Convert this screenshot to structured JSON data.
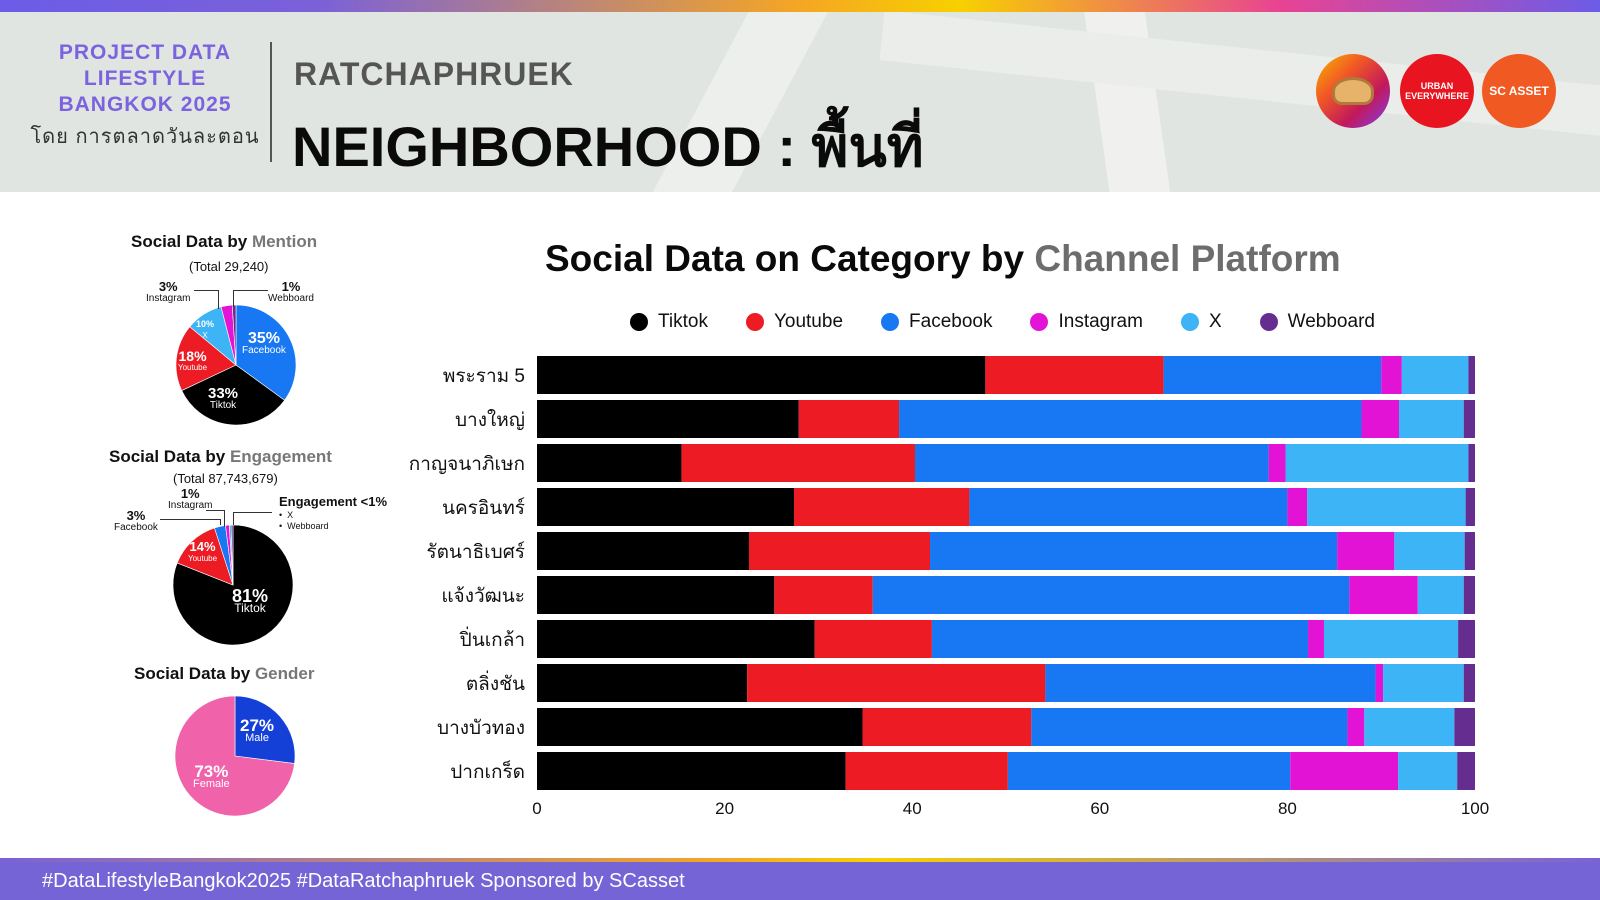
{
  "header": {
    "brand_title": "PROJECT DATA\nLIFESTYLE\nBANGKOK 2025",
    "brand_subtitle": "โดย การตลาดวันละตอน",
    "district": "RATCHAPHRUEK",
    "title": "NEIGHBORHOOD : พื้นที่",
    "logos": [
      {
        "name": "character-logo"
      },
      {
        "name": "urban-everywhere-logo",
        "text": "URBAN\nEVERYWHERE"
      },
      {
        "name": "sc-asset-logo",
        "text": "SC ASSET"
      }
    ]
  },
  "colors": {
    "Tiktok": "#000000",
    "Youtube": "#ed1c24",
    "Facebook": "#1877f2",
    "Instagram": "#e313d6",
    "X": "#3db4f6",
    "Webboard": "#662d91",
    "Male": "#1440d8",
    "Female": "#f062a9",
    "brand": "#7464d6"
  },
  "mention": {
    "title_a": "Social Data by ",
    "title_b": "Mention",
    "total": "(Total 29,240)",
    "labels": [
      {
        "pct": "35%",
        "name": "Facebook"
      },
      {
        "pct": "33%",
        "name": "Tiktok"
      },
      {
        "pct": "18%",
        "name": "Youtube"
      },
      {
        "pct": "10%",
        "name": "X"
      },
      {
        "pct": "3%",
        "name": "Instagram"
      },
      {
        "pct": "1%",
        "name": "Webboard"
      }
    ]
  },
  "engagement": {
    "title_a": "Social Data by ",
    "title_b": "Engagement",
    "total": "(Total 87,743,679)",
    "labels": [
      {
        "pct": "81%",
        "name": "Tiktok"
      },
      {
        "pct": "14%",
        "name": "Youtube"
      },
      {
        "pct": "3%",
        "name": "Facebook"
      },
      {
        "pct": "1%",
        "name": "Instagram"
      }
    ],
    "small_title": "Engagement <1%",
    "small_items": [
      "X",
      "Webboard"
    ]
  },
  "gender": {
    "title_a": "Social Data by ",
    "title_b": "Gender",
    "labels": [
      {
        "pct": "27%",
        "name": "Male"
      },
      {
        "pct": "73%",
        "name": "Female"
      }
    ]
  },
  "chart_data": [
    {
      "type": "pie",
      "title": "Social Data by Mention",
      "subtitle": "(Total 29,240)",
      "categories": [
        "Facebook",
        "Tiktok",
        "Youtube",
        "X",
        "Instagram",
        "Webboard"
      ],
      "values": [
        35,
        33,
        18,
        10,
        3,
        1
      ]
    },
    {
      "type": "pie",
      "title": "Social Data by Engagement",
      "subtitle": "(Total 87,743,679)",
      "categories": [
        "Tiktok",
        "Youtube",
        "Facebook",
        "Instagram",
        "X",
        "Webboard"
      ],
      "values": [
        81,
        14,
        3,
        1,
        0.5,
        0.5
      ]
    },
    {
      "type": "pie",
      "title": "Social Data by Gender",
      "categories": [
        "Male",
        "Female"
      ],
      "values": [
        27,
        73
      ]
    },
    {
      "type": "bar",
      "orientation": "horizontal",
      "stacked": true,
      "title": "Social Data on Category by Channel Platform",
      "categories": [
        "พระราม 5",
        "บางใหญ่",
        "กาญจนาภิเษก",
        "นครอินทร์",
        "รัตนาธิเบศร์",
        "แจ้งวัฒนะ",
        "ปิ่นเกล้า",
        "ตลิ่งชัน",
        "บางบัวทอง",
        "ปากเกร็ด"
      ],
      "series": [
        {
          "name": "Tiktok",
          "values": [
            47.8,
            27.9,
            15.4,
            27.4,
            22.6,
            25.3,
            29.6,
            22.4,
            34.7,
            32.9
          ]
        },
        {
          "name": "Youtube",
          "values": [
            19.0,
            10.7,
            24.9,
            18.7,
            19.3,
            10.5,
            12.5,
            31.8,
            18.0,
            17.3
          ]
        },
        {
          "name": "Facebook",
          "values": [
            23.2,
            49.3,
            37.7,
            33.9,
            43.4,
            50.8,
            40.1,
            35.2,
            33.7,
            30.1
          ]
        },
        {
          "name": "Instagram",
          "values": [
            2.2,
            4.0,
            1.8,
            2.1,
            6.1,
            7.3,
            1.7,
            0.8,
            1.8,
            11.5
          ]
        },
        {
          "name": "X",
          "values": [
            7.1,
            6.9,
            19.5,
            16.9,
            7.5,
            4.9,
            14.3,
            8.6,
            9.6,
            6.3
          ]
        },
        {
          "name": "Webboard",
          "values": [
            0.7,
            1.2,
            0.7,
            1.0,
            1.1,
            1.2,
            1.8,
            1.2,
            2.2,
            1.9
          ]
        }
      ],
      "xlim": [
        0,
        100
      ],
      "xticks": [
        0,
        20,
        40,
        60,
        80,
        100
      ],
      "legend_position": "top",
      "grid": false
    }
  ],
  "chart_title_a": "Social Data on Category by ",
  "chart_title_b": "Channel Platform",
  "footer": "#DataLifestyleBangkok2025 #DataRatchaphruek Sponsored by SCasset"
}
